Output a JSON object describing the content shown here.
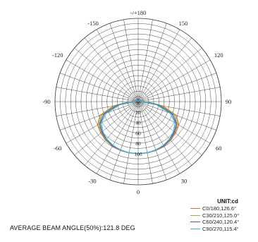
{
  "chart_data": {
    "type": "polar",
    "grid": true,
    "unit_label": "UNIT:cd",
    "top_label": "-/+180",
    "angle_labels": [
      "-150",
      "150",
      "-120",
      "120",
      "-90",
      "90",
      "-60",
      "60",
      "-30",
      "30",
      "0"
    ],
    "ring_labels": [
      "20",
      "40",
      "60",
      "80",
      "100"
    ],
    "rlim": [
      0,
      160
    ],
    "angle_grid_step_deg": 10,
    "series": [
      {
        "name": "C0/180,126.6°",
        "color": "#e8663a",
        "theta": [
          -180,
          -165,
          -150,
          -135,
          -120,
          -110,
          -100,
          -95,
          -90,
          -85,
          -80,
          -70,
          -60,
          -50,
          -40,
          -30,
          -20,
          -10,
          0,
          10,
          20,
          30,
          40,
          50,
          60,
          70,
          80,
          85,
          90,
          95,
          100,
          110,
          120,
          135,
          150,
          165,
          180
        ],
        "r": [
          0,
          0,
          1,
          2,
          3,
          6,
          8,
          10,
          12,
          25,
          48,
          78,
          90,
          94,
          97,
          99,
          100,
          100,
          100,
          100,
          100,
          99,
          97,
          94,
          90,
          78,
          48,
          25,
          12,
          10,
          8,
          6,
          3,
          2,
          1,
          0,
          0
        ]
      },
      {
        "name": "C30/210,125.0°",
        "color": "#7dbd3b",
        "theta": [
          -180,
          -165,
          -150,
          -135,
          -120,
          -110,
          -100,
          -95,
          -90,
          -85,
          -80,
          -70,
          -60,
          -50,
          -40,
          -30,
          -20,
          -10,
          0,
          10,
          20,
          30,
          40,
          50,
          60,
          70,
          80,
          85,
          90,
          95,
          100,
          110,
          120,
          135,
          150,
          165,
          180
        ],
        "r": [
          0,
          0,
          1,
          2,
          3,
          5,
          7,
          9,
          11,
          23,
          44,
          74,
          87,
          92,
          96,
          98,
          99,
          100,
          100,
          100,
          99,
          98,
          96,
          92,
          87,
          74,
          44,
          23,
          11,
          9,
          7,
          5,
          3,
          2,
          1,
          0,
          0
        ]
      },
      {
        "name": "C60/240,120.4°",
        "color": "#5a55a8",
        "theta": [
          -180,
          -165,
          -150,
          -135,
          -120,
          -110,
          -100,
          -95,
          -90,
          -85,
          -80,
          -70,
          -60,
          -50,
          -40,
          -30,
          -20,
          -10,
          0,
          10,
          20,
          30,
          40,
          50,
          60,
          70,
          80,
          85,
          90,
          95,
          100,
          110,
          120,
          135,
          150,
          165,
          180
        ],
        "r": [
          0,
          0,
          1,
          2,
          3,
          5,
          6,
          8,
          10,
          21,
          40,
          70,
          85,
          91,
          95,
          98,
          99,
          100,
          100,
          100,
          99,
          98,
          95,
          91,
          85,
          70,
          40,
          21,
          10,
          8,
          6,
          5,
          3,
          2,
          1,
          0,
          0
        ]
      },
      {
        "name": "C90/270,115.4°",
        "color": "#3fb0e0",
        "theta": [
          -180,
          -165,
          -150,
          -135,
          -120,
          -110,
          -100,
          -95,
          -90,
          -85,
          -80,
          -70,
          -60,
          -50,
          -40,
          -30,
          -20,
          -10,
          0,
          10,
          20,
          30,
          40,
          50,
          60,
          70,
          80,
          85,
          90,
          95,
          100,
          110,
          120,
          135,
          150,
          165,
          180
        ],
        "r": [
          0,
          0,
          1,
          2,
          3,
          4,
          6,
          7,
          9,
          19,
          36,
          66,
          82,
          89,
          94,
          97,
          99,
          100,
          100,
          100,
          99,
          97,
          94,
          89,
          82,
          66,
          36,
          19,
          9,
          7,
          6,
          4,
          3,
          2,
          1,
          0,
          0
        ]
      }
    ]
  },
  "footer": {
    "beam_angle_text": "AVERAGE BEAM ANGLE(50%):121.8 DEG"
  }
}
